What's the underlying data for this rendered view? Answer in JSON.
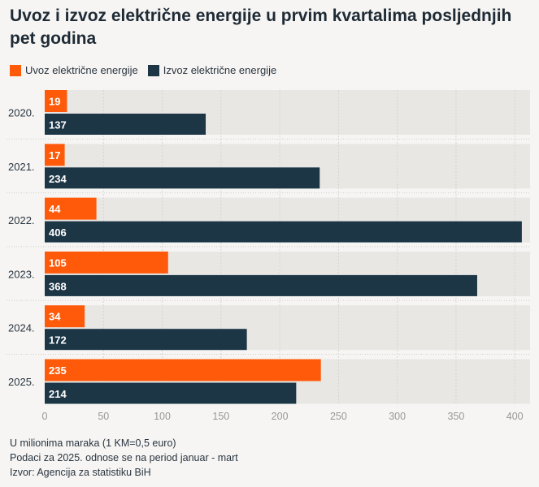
{
  "chart_data": {
    "type": "bar",
    "orientation": "horizontal",
    "title": "Uvoz i izvoz električne energije u prvim kvartalima posljednjih pet godina",
    "categories": [
      "2020.",
      "2021.",
      "2022.",
      "2023.",
      "2024.",
      "2025."
    ],
    "series": [
      {
        "name": "Uvoz električne energije",
        "color": "#ff5a0a",
        "values": [
          19,
          17,
          44,
          105,
          34,
          235
        ]
      },
      {
        "name": "Izvoz električne energije",
        "color": "#1c3646",
        "values": [
          137,
          234,
          406,
          368,
          172,
          214
        ]
      }
    ],
    "xlim": [
      0,
      413
    ],
    "xticks": [
      "0",
      "50",
      "100",
      "150",
      "200",
      "250",
      "300",
      "350",
      "400"
    ],
    "xtick_values": [
      0,
      50,
      100,
      150,
      200,
      250,
      300,
      350,
      400
    ],
    "grid": true,
    "legend_position": "top-left",
    "background_band_color": "#e9e7e4"
  },
  "notes": [
    "U milionima maraka (1 KM=0,5 euro)",
    "Podaci za 2025. odnose se na period januar - mart",
    "Izvor: Agencija za statistiku BiH"
  ]
}
